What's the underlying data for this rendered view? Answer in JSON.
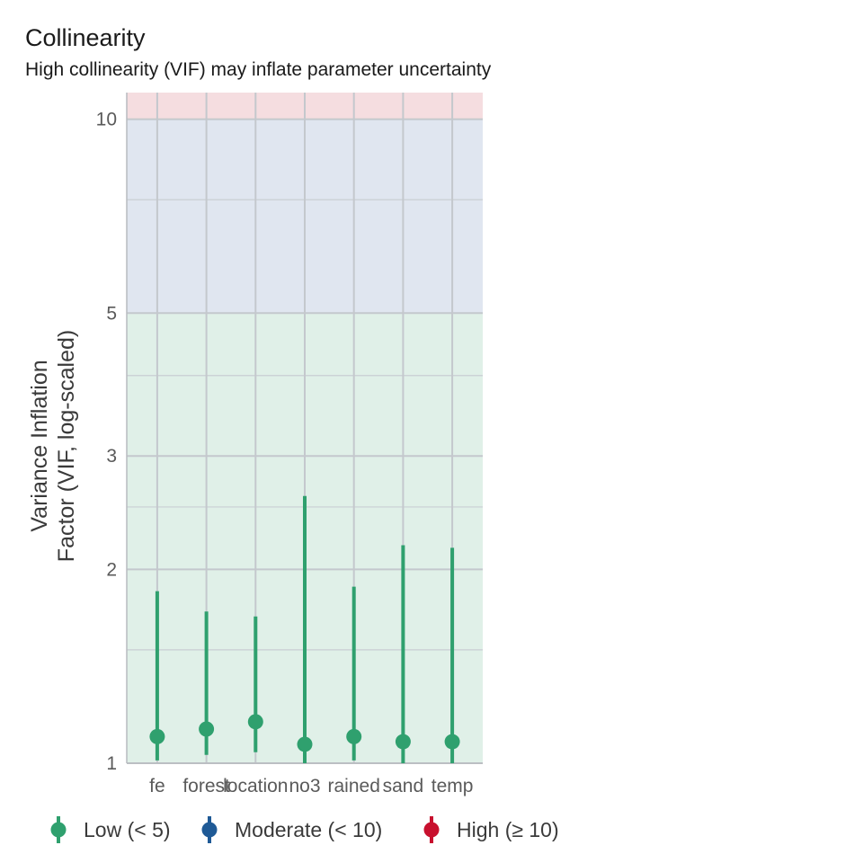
{
  "chart_data": {
    "type": "scatter",
    "title": "Collinearity",
    "subtitle": "High collinearity (VIF) may inflate parameter uncertainty",
    "ylabel": [
      "Variance Inflation",
      "Factor (VIF, log-scaled)"
    ],
    "xlabel": "",
    "y_scale": "log",
    "ylim": [
      1,
      11
    ],
    "y_ticks": [
      1,
      2,
      3,
      5,
      10
    ],
    "grid": true,
    "legend_position": "bottom",
    "zones": [
      {
        "name": "low",
        "from": 1,
        "to": 5,
        "color": "#e0f0e8"
      },
      {
        "name": "moderate",
        "from": 5,
        "to": 10,
        "color": "#e0e6f0"
      },
      {
        "name": "high",
        "from": 10,
        "to": 11,
        "color": "#f5dde0"
      }
    ],
    "categories": [
      "fe",
      "forest",
      "location",
      "no3",
      "rained",
      "sand",
      "temp"
    ],
    "points": [
      {
        "term": "fe",
        "vif": 1.1,
        "ci_low": 1.01,
        "ci_high": 1.85,
        "group": "low"
      },
      {
        "term": "forest",
        "vif": 1.13,
        "ci_low": 1.03,
        "ci_high": 1.72,
        "group": "low"
      },
      {
        "term": "location",
        "vif": 1.16,
        "ci_low": 1.04,
        "ci_high": 1.69,
        "group": "low"
      },
      {
        "term": "no3",
        "vif": 1.07,
        "ci_low": 1.0,
        "ci_high": 2.6,
        "group": "low"
      },
      {
        "term": "rained",
        "vif": 1.1,
        "ci_low": 1.01,
        "ci_high": 1.88,
        "group": "low"
      },
      {
        "term": "sand",
        "vif": 1.08,
        "ci_low": 1.0,
        "ci_high": 2.18,
        "group": "low"
      },
      {
        "term": "temp",
        "vif": 1.08,
        "ci_low": 1.0,
        "ci_high": 2.16,
        "group": "low"
      }
    ],
    "legend": [
      {
        "key": "low",
        "label": "Low (< 5)",
        "color": "#2fa06e"
      },
      {
        "key": "moderate",
        "label": "Moderate (< 10)",
        "color": "#1f5a96"
      },
      {
        "key": "high",
        "label": "High (≥ 10)",
        "color": "#c8102e"
      }
    ]
  }
}
